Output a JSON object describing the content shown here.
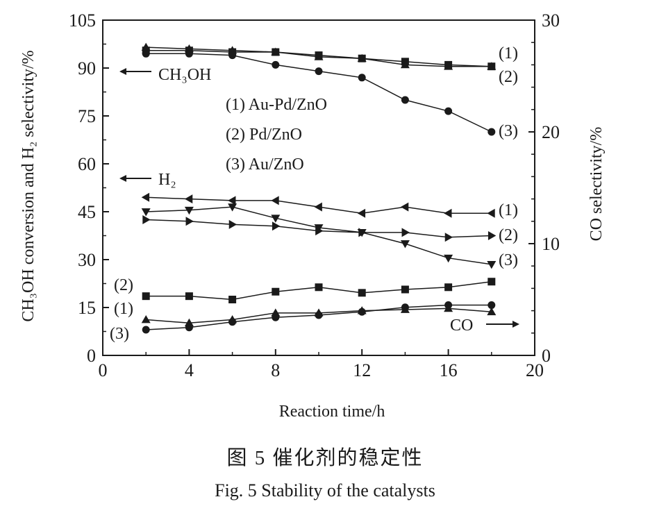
{
  "chart_data": {
    "type": "line",
    "xlabel": "Reaction time/h",
    "ylabel_left": "CH₃OH conversion and H₂ selectivity/%",
    "ylabel_right": "CO selectivity/%",
    "xlim": [
      0,
      20
    ],
    "ylim_left": [
      0,
      105
    ],
    "ylim_right": [
      0,
      30
    ],
    "x_ticks": [
      0,
      4,
      8,
      12,
      16,
      20
    ],
    "y_ticks_left": [
      0,
      15,
      30,
      45,
      60,
      75,
      90,
      105
    ],
    "y_ticks_right": [
      0,
      10,
      20,
      30
    ],
    "grid": false,
    "legend": {
      "placement": "inside-center",
      "entries": [
        "(1) Au-Pd/ZnO",
        "(2) Pd/ZnO",
        "(3) Au/ZnO"
      ]
    },
    "annotations": {
      "ch3oh": "CH₃OH",
      "h2": "H₂",
      "co": "CO",
      "label_1": "(1)",
      "label_2": "(2)",
      "label_3": "(3)"
    },
    "x": [
      2,
      4,
      6,
      8,
      10,
      12,
      14,
      16,
      18
    ],
    "series": [
      {
        "name": "(1) Au-Pd/ZnO",
        "group": "CH3OH",
        "axis": "left",
        "marker": "triangle-up",
        "values": [
          96.5,
          96,
          95.5,
          95,
          93.5,
          93,
          91,
          90.5,
          90.5
        ]
      },
      {
        "name": "(2) Pd/ZnO",
        "group": "CH3OH",
        "axis": "left",
        "marker": "square",
        "values": [
          95.5,
          95.5,
          95,
          95,
          94,
          93,
          92,
          91,
          90.5
        ]
      },
      {
        "name": "(3) Au/ZnO",
        "group": "CH3OH",
        "axis": "left",
        "marker": "circle",
        "values": [
          94.5,
          94.5,
          94,
          91,
          89,
          87,
          80,
          76.5,
          70
        ]
      },
      {
        "name": "(1) Au-Pd/ZnO",
        "group": "H2",
        "axis": "left",
        "marker": "triangle-left",
        "values": [
          49.5,
          49,
          48.5,
          48.5,
          46.5,
          44.5,
          46.5,
          44.5,
          44.5
        ]
      },
      {
        "name": "(2) Pd/ZnO",
        "group": "H2",
        "axis": "left",
        "marker": "triangle-right",
        "values": [
          42.5,
          42,
          41,
          40.5,
          39,
          38.5,
          38.5,
          37,
          37.5
        ]
      },
      {
        "name": "(3) Au/ZnO",
        "group": "H2",
        "axis": "left",
        "marker": "triangle-down",
        "values": [
          45,
          45.5,
          46.5,
          43,
          40,
          38.5,
          35,
          30.5,
          28.5
        ]
      },
      {
        "name": "(1) Au-Pd/ZnO",
        "group": "CO",
        "axis": "right",
        "marker": "triangle-up",
        "values": [
          3.2,
          2.9,
          3.2,
          3.8,
          3.8,
          4.0,
          4.1,
          4.2,
          3.9
        ]
      },
      {
        "name": "(2) Pd/ZnO",
        "group": "CO",
        "axis": "right",
        "marker": "square",
        "values": [
          5.3,
          5.3,
          5.0,
          5.7,
          6.1,
          5.6,
          5.9,
          6.1,
          6.6
        ]
      },
      {
        "name": "(3) Au/ZnO",
        "group": "CO",
        "axis": "right",
        "marker": "circle",
        "values": [
          2.3,
          2.5,
          3.0,
          3.4,
          3.6,
          3.9,
          4.3,
          4.5,
          4.5
        ]
      }
    ]
  },
  "caption": {
    "cn": "图 5    催化剂的稳定性",
    "en": "Fig. 5    Stability of the catalysts"
  }
}
